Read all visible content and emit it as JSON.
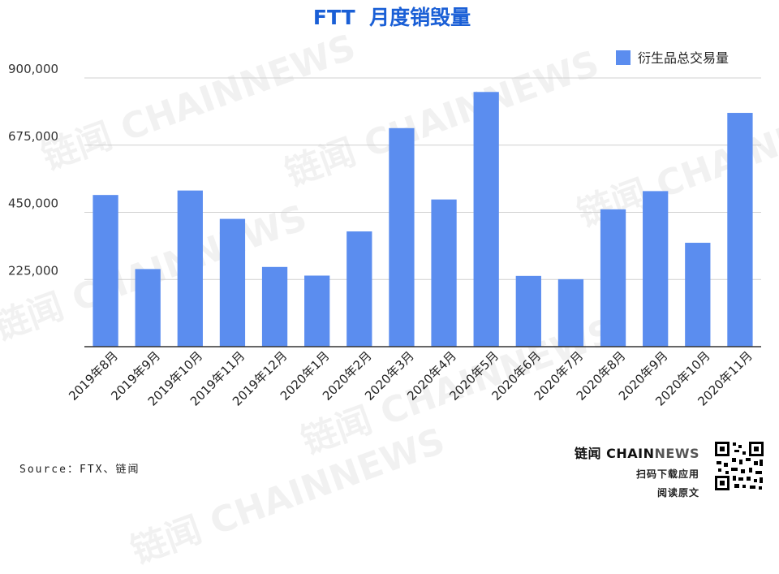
{
  "chart_data": {
    "type": "bar",
    "title": "FTT  月度销毁量",
    "categories": [
      "2019年8月",
      "2019年9月",
      "2019年10月",
      "2019年11月",
      "2019年12月",
      "2020年1月",
      "2020年2月",
      "2020年3月",
      "2020年4月",
      "2020年5月",
      "2020年6月",
      "2020年7月",
      "2020年8月",
      "2020年9月",
      "2020年10月",
      "2020年11月"
    ],
    "series": [
      {
        "name": "衍生品总交易量",
        "values": [
          508000,
          260000,
          523000,
          428000,
          267000,
          238000,
          386000,
          732000,
          493000,
          853000,
          237000,
          226000,
          460000,
          521000,
          348000,
          783000
        ]
      }
    ],
    "yticks": [
      225000,
      450000,
      675000,
      900000
    ],
    "ytick_labels": [
      "225,000",
      "450,000",
      "675,000",
      "900,000"
    ],
    "ylim": [
      0,
      900000
    ],
    "grid": true,
    "legend_position": "top-right",
    "colors": {
      "bar": "#5b8def",
      "title": "#1a5fd6",
      "grid": "#d0d0d0",
      "axis": "#333333"
    }
  },
  "footer": {
    "source": "Source：FTX、链闻",
    "brand_cn": "链闻",
    "brand_chain": "CHAIN",
    "brand_news": "NEWS",
    "line1": "扫码下载应用",
    "line2": "阅读原文"
  },
  "watermarks": [
    "链闻 CHAINNEWS",
    "链闻 CHAINNEWS",
    "链闻 CHAINNEWS",
    "链闻 CHAINNEWS",
    "链闻 CHAINNEWS",
    "链闻 CHAINNEWS"
  ]
}
